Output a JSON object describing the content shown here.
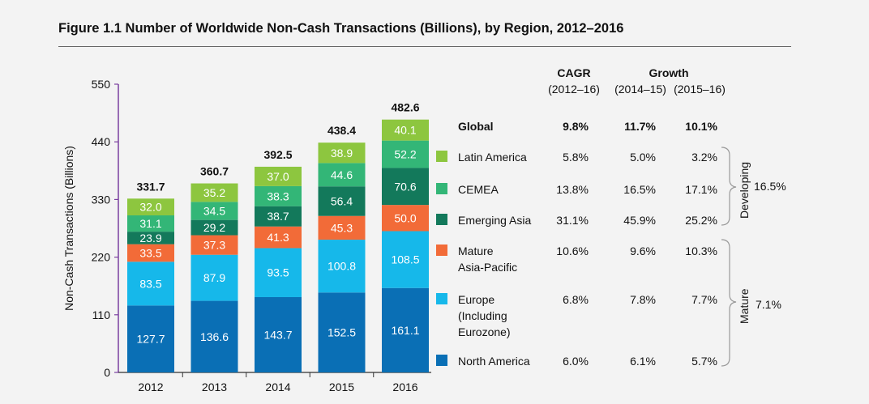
{
  "title": "Figure 1.1 Number of Worldwide Non-Cash Transactions (Billions), by Region, 2012–2016",
  "chart_data": {
    "type": "bar",
    "stacked": true,
    "categories": [
      "2012",
      "2013",
      "2014",
      "2015",
      "2016"
    ],
    "ylabel": "Non-Cash Transactions (Billions)",
    "ylim": [
      0,
      550
    ],
    "yticks": [
      "0",
      "110",
      "220",
      "330",
      "440",
      "550"
    ],
    "totals": [
      "331.7",
      "360.7",
      "392.5",
      "438.4",
      "482.6"
    ],
    "series": [
      {
        "name": "North America",
        "color": "#0a6fb5",
        "values": [
          127.7,
          136.6,
          143.7,
          152.5,
          161.1
        ],
        "labels": [
          "127.7",
          "136.6",
          "143.7",
          "152.5",
          "161.1"
        ]
      },
      {
        "name": "Europe (Including Eurozone)",
        "color": "#16b8ea",
        "values": [
          83.5,
          87.9,
          93.5,
          100.8,
          108.5
        ],
        "labels": [
          "83.5",
          "87.9",
          "93.5",
          "100.8",
          "108.5"
        ]
      },
      {
        "name": "Mature Asia-Pacific",
        "color": "#f26b38",
        "values": [
          33.5,
          37.3,
          41.3,
          45.3,
          50.0
        ],
        "labels": [
          "33.5",
          "37.3",
          "41.3",
          "45.3",
          "50.0"
        ]
      },
      {
        "name": "Emerging Asia",
        "color": "#13795b",
        "values": [
          23.9,
          29.2,
          38.7,
          56.4,
          70.6
        ],
        "labels": [
          "23.9",
          "29.2",
          "38.7",
          "56.4",
          "70.6"
        ]
      },
      {
        "name": "CEMEA",
        "color": "#33b677",
        "values": [
          31.1,
          34.5,
          38.3,
          44.6,
          52.2
        ],
        "labels": [
          "31.1",
          "34.5",
          "38.3",
          "44.6",
          "52.2"
        ]
      },
      {
        "name": "Latin America",
        "color": "#8dc63f",
        "values": [
          32.0,
          35.2,
          37.0,
          38.9,
          40.1
        ],
        "labels": [
          "32.0",
          "35.2",
          "37.0",
          "38.9",
          "40.1"
        ]
      }
    ]
  },
  "table": {
    "headers": {
      "cagr": "CAGR",
      "growth": "Growth",
      "col1": "(2012–16)",
      "col2": "(2014–15)",
      "col3": "(2015–16)"
    },
    "rows": [
      {
        "label": "Global",
        "cagr": "9.8%",
        "g1": "11.7%",
        "g2": "10.1%",
        "bold": true
      },
      {
        "label": "Latin America",
        "cagr": "5.8%",
        "g1": "5.0%",
        "g2": "3.2%",
        "color": "#8dc63f"
      },
      {
        "label": "CEMEA",
        "cagr": "13.8%",
        "g1": "16.5%",
        "g2": "17.1%",
        "color": "#33b677"
      },
      {
        "label": "Emerging Asia",
        "cagr": "31.1%",
        "g1": "45.9%",
        "g2": "25.2%",
        "color": "#13795b"
      },
      {
        "label": "Mature\nAsia-Pacific",
        "cagr": "10.6%",
        "g1": "9.6%",
        "g2": "10.3%",
        "color": "#f26b38"
      },
      {
        "label": "Europe\n(Including\nEurozone)",
        "cagr": "6.8%",
        "g1": "7.8%",
        "g2": "7.7%",
        "color": "#16b8ea"
      },
      {
        "label": "North America",
        "cagr": "6.0%",
        "g1": "6.1%",
        "g2": "5.7%",
        "color": "#0a6fb5"
      }
    ],
    "groups": [
      {
        "name": "Developing",
        "value": "16.5%"
      },
      {
        "name": "Mature",
        "value": "7.1%"
      }
    ]
  }
}
